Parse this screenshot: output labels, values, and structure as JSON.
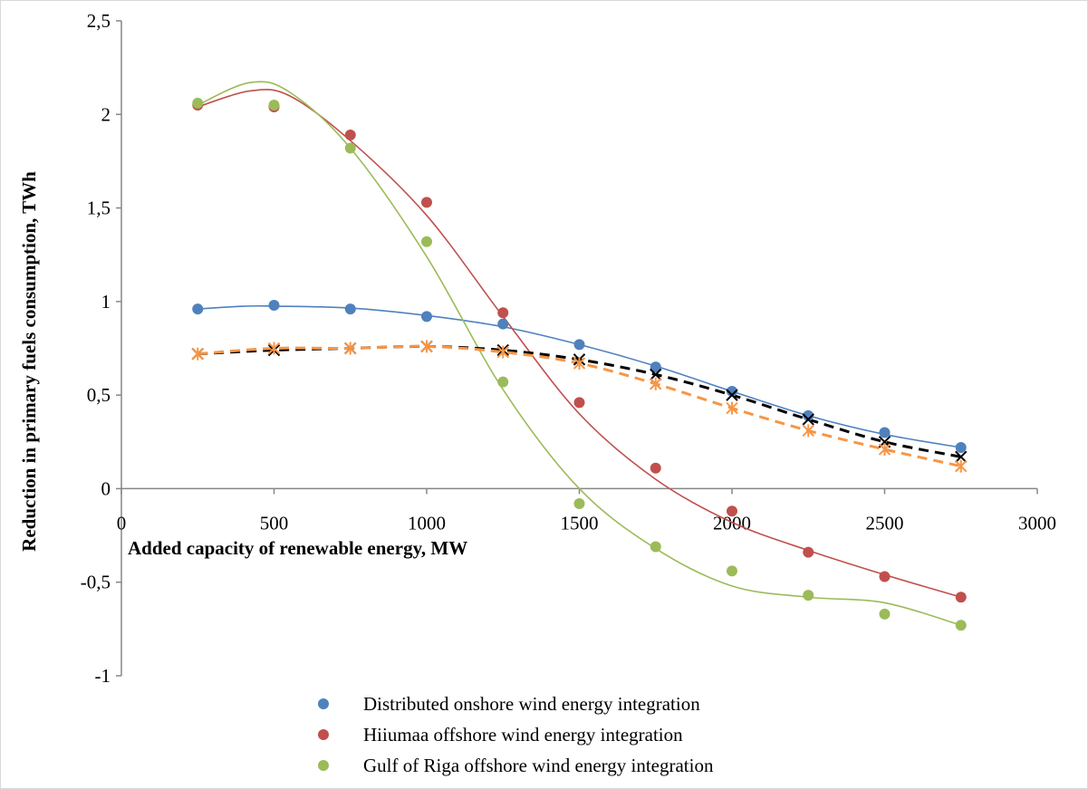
{
  "chart_data": {
    "type": "scatter",
    "title": "",
    "xlabel": "Added capacity of renewable energy, MW",
    "ylabel": "Reduction in primary fuels consumption, TWh",
    "xlim": [
      0,
      3000
    ],
    "ylim": [
      -1,
      2.5
    ],
    "x_ticks": [
      "0",
      "500",
      "1000",
      "1500",
      "2000",
      "2500",
      "3000"
    ],
    "y_ticks": [
      "2,5",
      "2",
      "1,5",
      "1",
      "0,5",
      "0",
      "-0,5",
      "-1"
    ],
    "grid": false,
    "legend_position": "bottom",
    "x": [
      250,
      500,
      750,
      1000,
      1250,
      1500,
      1750,
      2000,
      2250,
      2500,
      2750
    ],
    "series": [
      {
        "name": "Distributed onshore wind energy integration",
        "color": "#4f81bd",
        "marker": "circle",
        "trendline": "smooth",
        "values": [
          0.96,
          0.98,
          0.96,
          0.92,
          0.88,
          0.77,
          0.65,
          0.52,
          0.39,
          0.3,
          0.22
        ]
      },
      {
        "name": "Hiiumaa offshore wind energy integration",
        "color": "#c0504d",
        "marker": "circle",
        "trendline": "smooth",
        "values": [
          2.05,
          2.04,
          1.89,
          1.53,
          0.94,
          0.46,
          0.11,
          -0.12,
          -0.34,
          -0.47,
          -0.58
        ]
      },
      {
        "name": "Gulf of Riga offshore wind energy integration",
        "color": "#9bbb59",
        "marker": "circle",
        "trendline": "smooth",
        "values": [
          2.06,
          2.05,
          1.82,
          1.32,
          0.57,
          -0.08,
          -0.31,
          -0.44,
          -0.57,
          -0.67,
          -0.73
        ]
      },
      {
        "color": "#000000",
        "marker": "x",
        "line": "dashed",
        "values": [
          0.72,
          0.74,
          0.75,
          0.76,
          0.74,
          0.69,
          0.61,
          0.5,
          0.37,
          0.25,
          0.17
        ]
      },
      {
        "color": "#f79646",
        "marker": "star",
        "line": "dashed",
        "values": [
          0.72,
          0.75,
          0.75,
          0.76,
          0.73,
          0.67,
          0.56,
          0.43,
          0.31,
          0.21,
          0.12
        ]
      }
    ],
    "trend_curves": [
      {
        "series": "Distributed onshore wind energy integration",
        "x": [
          250,
          400,
          500,
          750,
          1000,
          1250,
          1500,
          1750,
          2000,
          2250,
          2500,
          2750
        ],
        "y": [
          0.96,
          0.975,
          0.975,
          0.965,
          0.925,
          0.865,
          0.77,
          0.655,
          0.52,
          0.39,
          0.29,
          0.22
        ]
      },
      {
        "series": "Hiiumaa offshore wind energy integration",
        "x": [
          250,
          420,
          550,
          750,
          1000,
          1250,
          1500,
          1750,
          2000,
          2250,
          2500,
          2750
        ],
        "y": [
          2.04,
          2.125,
          2.1,
          1.86,
          1.46,
          0.92,
          0.4,
          0.05,
          -0.18,
          -0.33,
          -0.46,
          -0.58
        ]
      },
      {
        "series": "Gulf of Riga offshore wind energy integration",
        "x": [
          250,
          420,
          550,
          750,
          1000,
          1250,
          1500,
          1750,
          2000,
          2250,
          2500,
          2750
        ],
        "y": [
          2.05,
          2.17,
          2.12,
          1.82,
          1.24,
          0.53,
          0.0,
          -0.32,
          -0.52,
          -0.58,
          -0.61,
          -0.73
        ]
      }
    ]
  }
}
